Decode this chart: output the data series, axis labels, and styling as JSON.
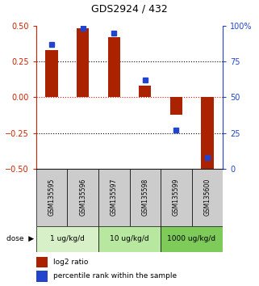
{
  "title": "GDS2924 / 432",
  "samples": [
    "GSM135595",
    "GSM135596",
    "GSM135597",
    "GSM135598",
    "GSM135599",
    "GSM135600"
  ],
  "log2_ratio": [
    0.33,
    0.48,
    0.42,
    0.08,
    -0.12,
    -0.52
  ],
  "percentile_rank": [
    87,
    98,
    95,
    62,
    27,
    8
  ],
  "dose_groups": [
    {
      "label": "1 ug/kg/d",
      "samples": [
        0,
        1
      ]
    },
    {
      "label": "10 ug/kg/d",
      "samples": [
        2,
        3
      ]
    },
    {
      "label": "1000 ug/kg/d",
      "samples": [
        4,
        5
      ]
    }
  ],
  "ylim_left": [
    -0.5,
    0.5
  ],
  "ylim_right": [
    0,
    100
  ],
  "bar_color": "#aa2200",
  "dot_color": "#2244cc",
  "bg_color": "#ffffff",
  "tick_color_left": "#cc2200",
  "tick_color_right": "#2244cc",
  "sample_bg": "#cccccc",
  "dose_colors": [
    "#d8f0c8",
    "#b8e8a0",
    "#7ecb5a"
  ],
  "bar_width": 0.4,
  "legend_red_label": "log2 ratio",
  "legend_blue_label": "percentile rank within the sample"
}
